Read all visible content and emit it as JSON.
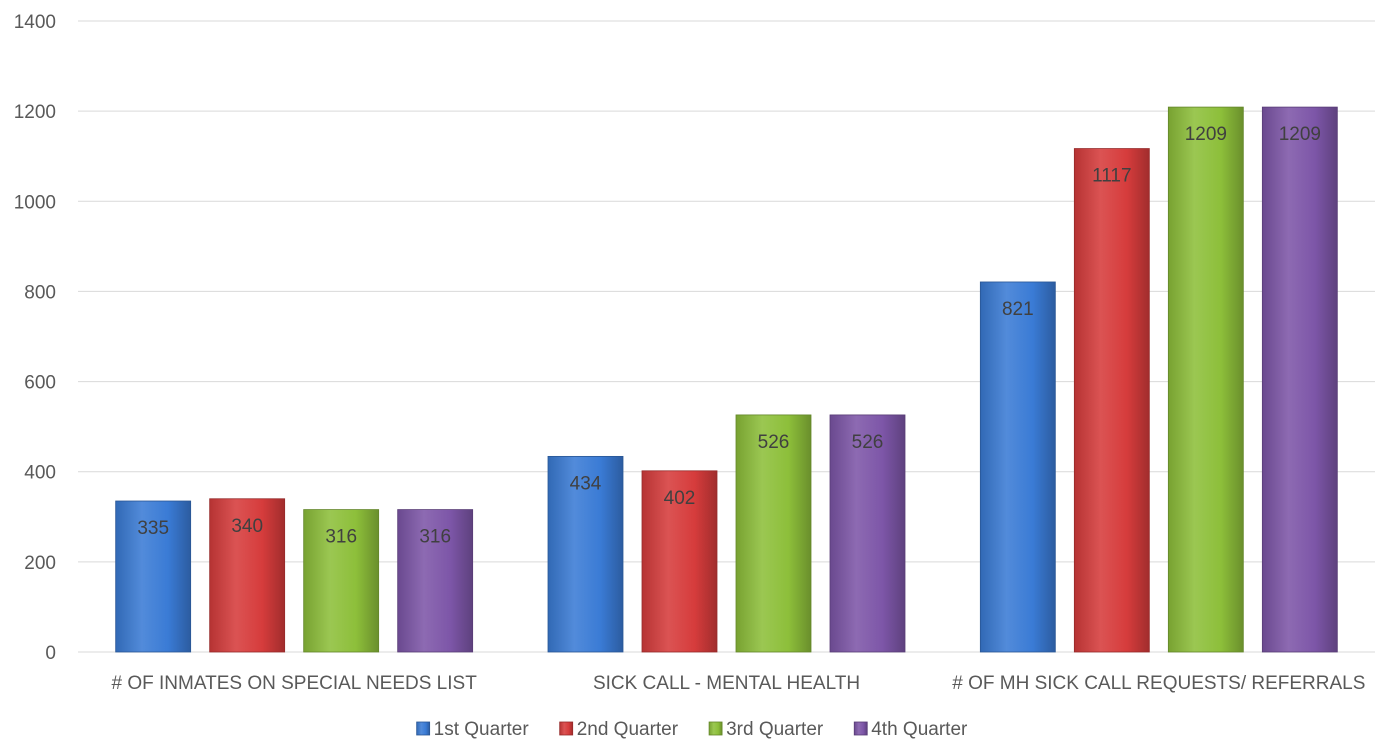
{
  "chart_data": {
    "type": "bar",
    "title": "",
    "xlabel": "",
    "ylabel": "",
    "ylim": [
      0,
      1400
    ],
    "ytick_step": 200,
    "grid": true,
    "legend_position": "bottom",
    "categories": [
      "# OF INMATES ON SPECIAL NEEDS LIST",
      "SICK CALL - MENTAL HEALTH",
      "# OF MH SICK CALL REQUESTS/ REFERRALS"
    ],
    "series": [
      {
        "name": "1st Quarter",
        "color": "#3a7bd5",
        "values": [
          335,
          434,
          821
        ]
      },
      {
        "name": "2nd Quarter",
        "color": "#d63c3c",
        "values": [
          340,
          402,
          1117
        ]
      },
      {
        "name": "3rd Quarter",
        "color": "#8dbf3a",
        "values": [
          316,
          526,
          1209
        ]
      },
      {
        "name": "4th Quarter",
        "color": "#7d56a8",
        "values": [
          316,
          526,
          1209
        ]
      }
    ]
  }
}
